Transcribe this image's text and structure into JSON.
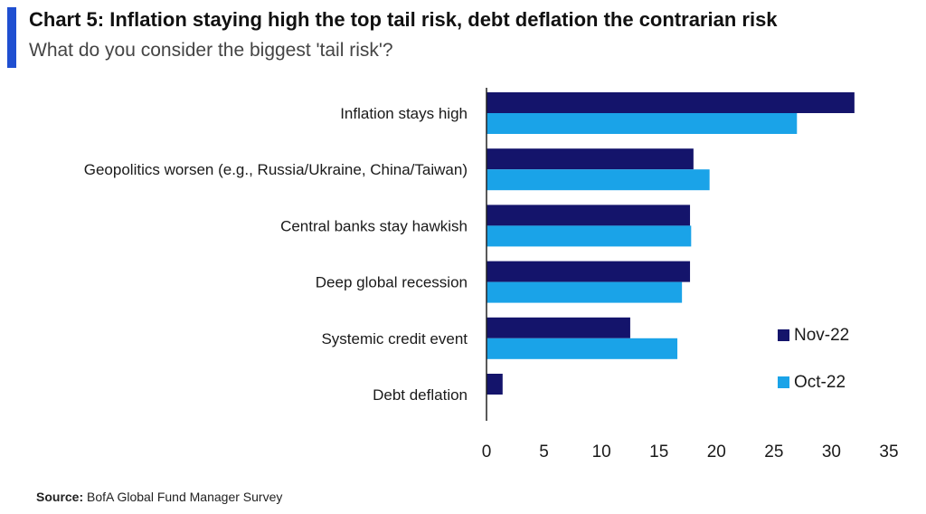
{
  "header": {
    "title": "Chart 5: Inflation staying high the top tail risk, debt deflation the contrarian risk",
    "subtitle": "What do you consider the biggest 'tail risk'?"
  },
  "footer": {
    "source_label": "Source:",
    "source_text": "BofA Global Fund Manager Survey"
  },
  "colors": {
    "accent": "#1f4fd1",
    "nov": "#14146b",
    "oct": "#1aa3e8"
  },
  "chart_data": {
    "type": "bar",
    "orientation": "horizontal",
    "categories": [
      "Inflation stays high",
      "Geopolitics worsen (e.g., Russia/Ukraine, China/Taiwan)",
      "Central banks stay hawkish",
      "Deep global recession",
      "Systemic credit event",
      "Debt deflation"
    ],
    "series": [
      {
        "name": "Nov-22",
        "color": "#14146b",
        "values": [
          32,
          18,
          17.7,
          17.7,
          12.5,
          1.4
        ]
      },
      {
        "name": "Oct-22",
        "color": "#1aa3e8",
        "values": [
          27,
          19.4,
          17.8,
          17,
          16.6,
          null
        ]
      }
    ],
    "xlim": [
      0,
      35
    ],
    "xticks": [
      "0",
      "5",
      "10",
      "15",
      "20",
      "25",
      "30",
      "35"
    ],
    "grid": false,
    "legend": "right"
  }
}
